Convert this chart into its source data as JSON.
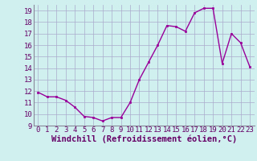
{
  "x": [
    0,
    1,
    2,
    3,
    4,
    5,
    6,
    7,
    8,
    9,
    10,
    11,
    12,
    13,
    14,
    15,
    16,
    17,
    18,
    19,
    20,
    21,
    22,
    23
  ],
  "y": [
    11.9,
    11.5,
    11.5,
    11.2,
    10.6,
    9.8,
    9.7,
    9.4,
    9.7,
    9.7,
    11.0,
    13.0,
    14.5,
    16.0,
    17.7,
    17.6,
    17.2,
    18.8,
    19.2,
    19.2,
    14.4,
    17.0,
    16.2,
    14.1
  ],
  "line_color": "#990099",
  "marker_color": "#990099",
  "bg_color": "#d0f0f0",
  "grid_color": "#aaaacc",
  "xlabel": "Windchill (Refroidissement éolien,°C)",
  "ylim": [
    9,
    19.5
  ],
  "xlim": [
    -0.5,
    23.5
  ],
  "yticks": [
    9,
    10,
    11,
    12,
    13,
    14,
    15,
    16,
    17,
    18,
    19
  ],
  "xticks": [
    0,
    1,
    2,
    3,
    4,
    5,
    6,
    7,
    8,
    9,
    10,
    11,
    12,
    13,
    14,
    15,
    16,
    17,
    18,
    19,
    20,
    21,
    22,
    23
  ],
  "tick_label_fontsize": 6.5,
  "xlabel_fontsize": 7.5
}
